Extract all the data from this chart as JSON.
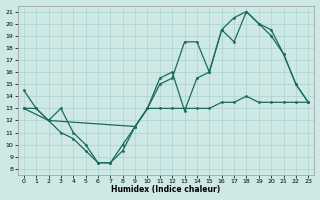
{
  "xlabel": "Humidex (Indice chaleur)",
  "bg_color": "#cde8e5",
  "grid_color": "#b0d5d0",
  "line_color": "#1a6b5e",
  "xlim": [
    -0.5,
    23.5
  ],
  "ylim": [
    7.5,
    21.5
  ],
  "xticks": [
    0,
    1,
    2,
    3,
    4,
    5,
    6,
    7,
    8,
    9,
    10,
    11,
    12,
    13,
    14,
    15,
    16,
    17,
    18,
    19,
    20,
    21,
    22,
    23
  ],
  "yticks": [
    8,
    9,
    10,
    11,
    12,
    13,
    14,
    15,
    16,
    17,
    18,
    19,
    20,
    21
  ],
  "line1_x": [
    0,
    1,
    2,
    3,
    4,
    5,
    6,
    7,
    8,
    9,
    10,
    11,
    12,
    13,
    14,
    15,
    16,
    17,
    18,
    19,
    20,
    21,
    22,
    23
  ],
  "line1_y": [
    14.5,
    13.0,
    12.0,
    11.0,
    10.5,
    9.5,
    8.5,
    8.5,
    10.0,
    11.5,
    13.0,
    15.5,
    16.0,
    12.8,
    15.5,
    16.0,
    19.5,
    18.5,
    21.0,
    20.0,
    19.0,
    17.5,
    15.0,
    13.5
  ],
  "line2_x": [
    0,
    1,
    2,
    3,
    4,
    5,
    6,
    7,
    8,
    9,
    10,
    11,
    12,
    13,
    14,
    15,
    16,
    17,
    18,
    19,
    20,
    21,
    22,
    23
  ],
  "line2_y": [
    13.0,
    13.0,
    12.0,
    13.0,
    11.0,
    10.0,
    8.5,
    8.5,
    9.5,
    11.5,
    13.0,
    15.0,
    15.5,
    18.5,
    18.5,
    16.0,
    19.5,
    20.5,
    21.0,
    20.0,
    19.5,
    17.5,
    15.0,
    13.5
  ],
  "line3_x": [
    0,
    2,
    9,
    10,
    11,
    12,
    13,
    14,
    15,
    16,
    17,
    18,
    19,
    20,
    21,
    22,
    23
  ],
  "line3_y": [
    13.0,
    12.0,
    11.5,
    13.0,
    13.0,
    13.0,
    13.0,
    13.0,
    13.0,
    13.5,
    13.5,
    14.0,
    13.5,
    13.5,
    13.5,
    13.5,
    13.5
  ]
}
